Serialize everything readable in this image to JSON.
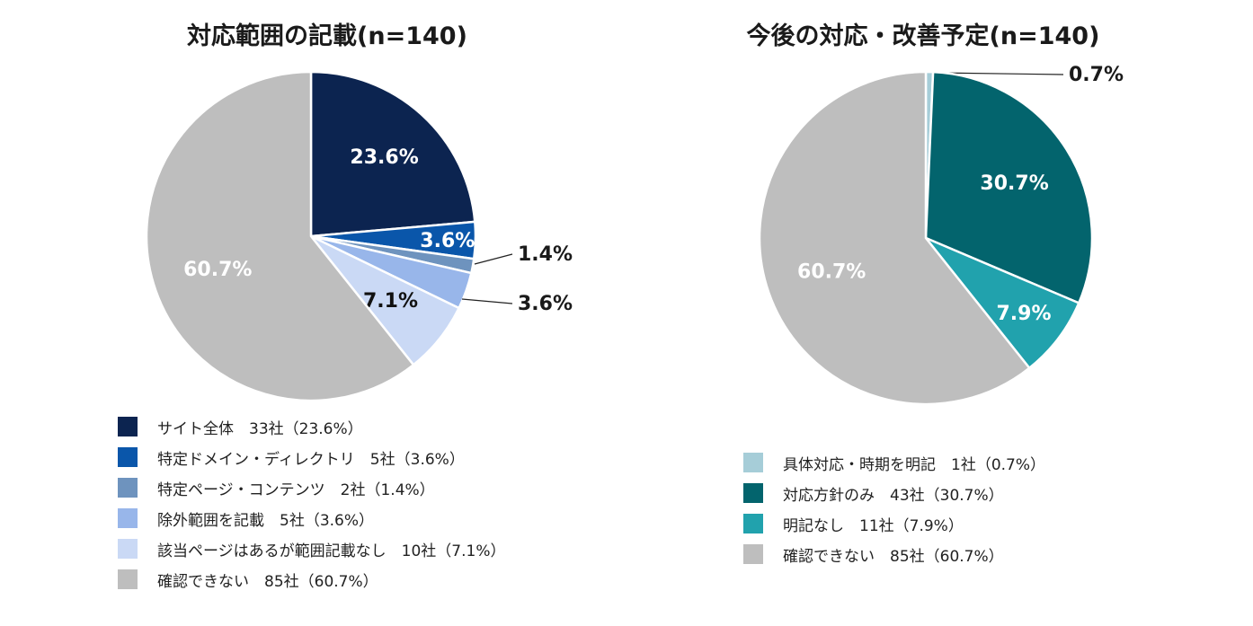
{
  "chart_data": [
    {
      "type": "pie",
      "title": "対応範囲の記載(n=140)",
      "slices": [
        {
          "label": "サイト全体",
          "value": 23.6,
          "display": "23.6%",
          "legend": "サイト全体　33社（23.6%）",
          "color": "#0c2450",
          "label_color": "#ffffff"
        },
        {
          "label": "特定ドメイン・ディレクトリ",
          "value": 3.6,
          "display": "3.6%",
          "legend": "特定ドメイン・ディレクトリ　5社（3.6%）",
          "color": "#0a56aa",
          "label_color": "#ffffff"
        },
        {
          "label": "特定ページ・コンテンツ",
          "value": 1.4,
          "display": "1.4%",
          "legend": "特定ページ・コンテンツ　2社（1.4%）",
          "color": "#6e93be",
          "label_color": "#111111"
        },
        {
          "label": "除外範囲を記載",
          "value": 3.6,
          "display": "3.6%",
          "legend": "除外範囲を記載　5社（3.6%）",
          "color": "#98b6ea",
          "label_color": "#111111"
        },
        {
          "label": "該当ページはあるが範囲記載なし",
          "value": 7.1,
          "display": "7.1%",
          "legend": "該当ページはあるが範囲記載なし　10社（7.1%）",
          "color": "#cad9f5",
          "label_color": "#111111"
        },
        {
          "label": "確認できない",
          "value": 60.7,
          "display": "60.7%",
          "legend": "確認できない　85社（60.7%）",
          "color": "#bebebe",
          "label_color": "#ffffff"
        }
      ]
    },
    {
      "type": "pie",
      "title": "今後の対応・改善予定(n=140)",
      "slices": [
        {
          "label": "具体対応・時期を明記",
          "value": 0.7,
          "display": "0.7%",
          "legend": "具体対応・時期を明記　1社（0.7%）",
          "color": "#a6cdd8",
          "label_color": "#111111"
        },
        {
          "label": "対応方針のみ",
          "value": 30.7,
          "display": "30.7%",
          "legend": "対応方針のみ　43社（30.7%）",
          "color": "#03646d",
          "label_color": "#ffffff"
        },
        {
          "label": "明記なし",
          "value": 7.9,
          "display": "7.9%",
          "legend": "明記なし　11社（7.9%）",
          "color": "#21a2ad",
          "label_color": "#ffffff"
        },
        {
          "label": "確認できない",
          "value": 60.7,
          "display": "60.7%",
          "legend": "確認できない　85社（60.7%）",
          "color": "#bebebe",
          "label_color": "#ffffff"
        }
      ]
    }
  ]
}
